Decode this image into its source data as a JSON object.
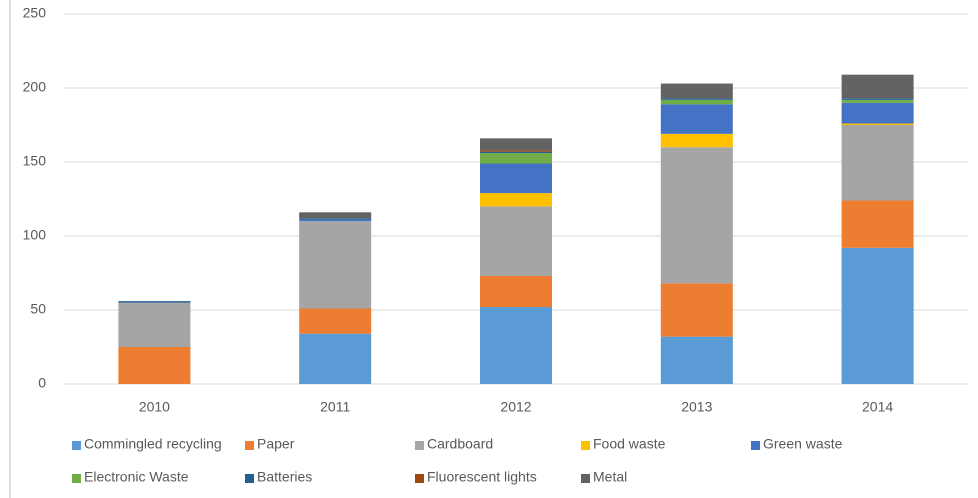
{
  "chart_data": {
    "type": "stacked_bar",
    "categories": [
      "2010",
      "2011",
      "2012",
      "2013",
      "2014"
    ],
    "series": [
      {
        "name": "Commingled recycling",
        "color": "#5b9bd5",
        "values": [
          0,
          34,
          52,
          32,
          92
        ]
      },
      {
        "name": "Paper",
        "color": "#ed7d31",
        "values": [
          25,
          17,
          21,
          36,
          32
        ]
      },
      {
        "name": "Cardboard",
        "color": "#a5a5a5",
        "values": [
          30,
          59,
          47,
          92,
          51
        ]
      },
      {
        "name": "Food waste",
        "color": "#ffc000",
        "values": [
          0,
          0,
          9,
          9,
          1
        ]
      },
      {
        "name": "Green waste",
        "color": "#4472c4",
        "values": [
          0,
          1,
          20,
          20,
          14
        ]
      },
      {
        "name": "Electronic Waste",
        "color": "#70ad47",
        "values": [
          0,
          0,
          7,
          3,
          2
        ]
      },
      {
        "name": "Batteries",
        "color": "#255e91",
        "values": [
          1,
          1,
          1,
          1,
          1
        ]
      },
      {
        "name": "Fluorescent lights",
        "color": "#9e480e",
        "values": [
          0,
          0,
          1,
          0,
          0
        ]
      },
      {
        "name": "Metal",
        "color": "#636363",
        "values": [
          0,
          4,
          8,
          10,
          16
        ]
      }
    ],
    "ylim": [
      0,
      250
    ],
    "yticks": [
      0,
      50,
      100,
      150,
      200,
      250
    ],
    "grid": true,
    "legend": "bottom"
  }
}
